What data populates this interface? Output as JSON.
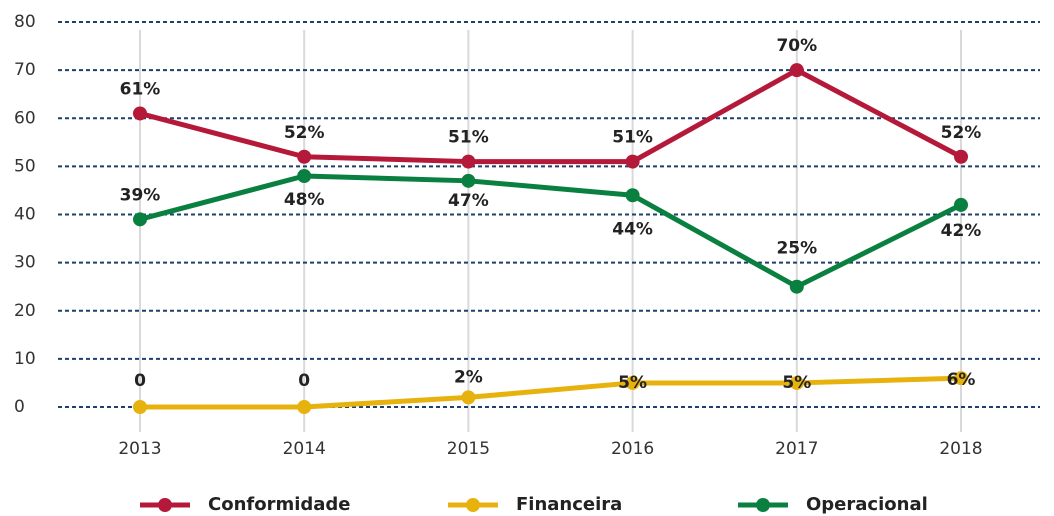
{
  "chart_data": {
    "type": "line",
    "categories": [
      "2013",
      "2014",
      "2015",
      "2016",
      "2017",
      "2018"
    ],
    "series": [
      {
        "name": "Conformidade",
        "color": "#b5193a",
        "values": [
          61,
          52,
          51,
          51,
          70,
          52
        ],
        "value_labels": [
          "61%",
          "52%",
          "51%",
          "51%",
          "70%",
          "52%"
        ]
      },
      {
        "name": "Financeira",
        "color": "#e8b20e",
        "values": [
          0,
          0,
          2,
          5,
          5,
          6
        ],
        "value_labels": [
          "0",
          "0",
          "2%",
          "5%",
          "5%",
          "6%"
        ]
      },
      {
        "name": "Operacional",
        "color": "#0a8040",
        "values": [
          39,
          48,
          47,
          44,
          25,
          42
        ],
        "value_labels": [
          "39%",
          "48%",
          "47%",
          "44%",
          "25%",
          "42%"
        ]
      }
    ],
    "ylim": [
      0,
      80
    ],
    "yticks": [
      0,
      10,
      20,
      30,
      40,
      50,
      60,
      70,
      80
    ],
    "grid": true
  }
}
